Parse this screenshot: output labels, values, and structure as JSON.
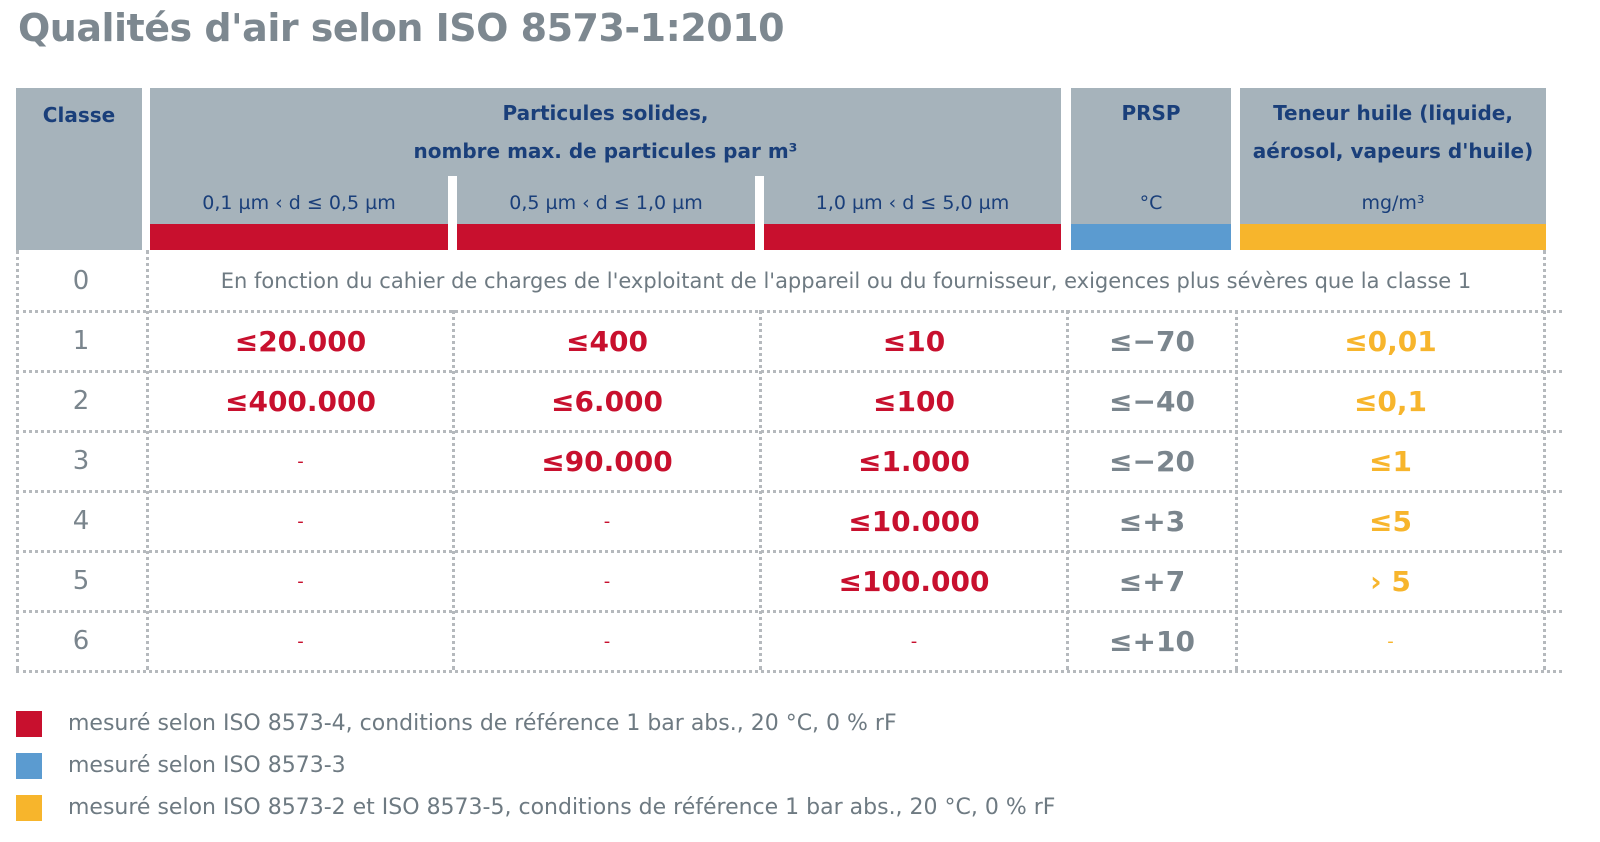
{
  "title": "Qualités d'air selon ISO 8573-1:2010",
  "header": {
    "classe": "Classe",
    "particles_line1": "Particules solides,",
    "particles_line2": "nombre max. de particules par m³",
    "sub1": "0,1 µm ‹ d ≤ 0,5 µm",
    "sub2": "0,5 µm ‹ d ≤ 1,0 µm",
    "sub3": "1,0 µm ‹ d ≤ 5,0 µm",
    "prsp": "PRSP",
    "prsp_unit": "°C",
    "oil_line1": "Teneur huile  (liquide,",
    "oil_line2": "aérosol, vapeurs d'huile)",
    "oil_unit": "mg/m³"
  },
  "colors": {
    "red": "#c8102e",
    "blue": "#5b9bd0",
    "yellow": "#f7b52c",
    "header_bg": "#a6b3bb"
  },
  "row0": {
    "classe": "0",
    "text": "En fonction du cahier de charges de l'exploitant de l'appareil ou du fournisseur, exigences plus sévères que la classe 1"
  },
  "rows": [
    {
      "classe": "1",
      "p1": "≤20.000",
      "p2": "≤400",
      "p3": "≤10",
      "prsp": "≤−70",
      "oil": "≤0,01"
    },
    {
      "classe": "2",
      "p1": "≤400.000",
      "p2": "≤6.000",
      "p3": "≤100",
      "prsp": "≤−40",
      "oil": "≤0,1"
    },
    {
      "classe": "3",
      "p1": "-",
      "p2": "≤90.000",
      "p3": "≤1.000",
      "prsp": "≤−20",
      "oil": "≤1"
    },
    {
      "classe": "4",
      "p1": "-",
      "p2": "-",
      "p3": "≤10.000",
      "prsp": "≤+3",
      "oil": "≤5"
    },
    {
      "classe": "5",
      "p1": "-",
      "p2": "-",
      "p3": "≤100.000",
      "prsp": "≤+7",
      "oil": "› 5"
    },
    {
      "classe": "6",
      "p1": "-",
      "p2": "-",
      "p3": "-",
      "prsp": "≤+10",
      "oil": "-"
    }
  ],
  "legend": [
    {
      "color": "red",
      "text": "mesuré selon ISO 8573-4, conditions de référence 1 bar abs., 20 °C, 0 % rF"
    },
    {
      "color": "blue",
      "text": "mesuré selon ISO 8573-3"
    },
    {
      "color": "yellow",
      "text": "mesuré selon ISO 8573-2 et ISO 8573-5, conditions de référence 1 bar abs., 20 °C, 0 % rF"
    }
  ]
}
